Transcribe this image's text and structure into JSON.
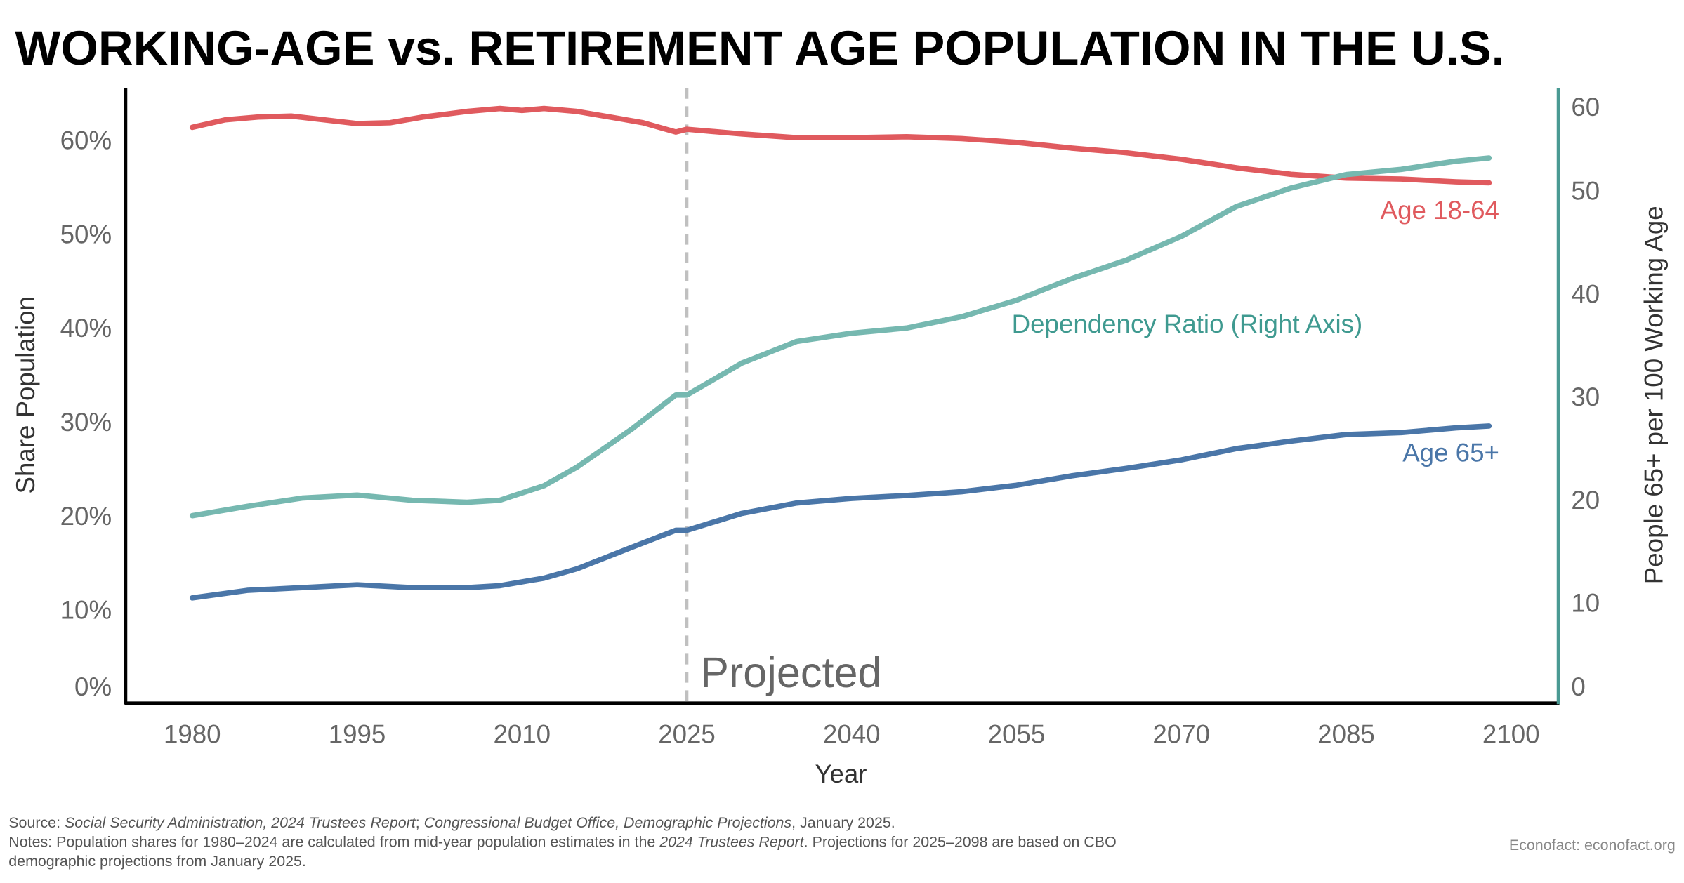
{
  "title": "WORKING-AGE vs. RETIREMENT AGE POPULATION IN THE U.S.",
  "chart_data": {
    "type": "line",
    "title": "WORKING-AGE vs. RETIREMENT AGE POPULATION IN THE U.S.",
    "xlabel": "Year",
    "ylabel": "Share Population",
    "ylabel_right": "People 65+ per 100 Working Age",
    "xlim": [
      1974,
      2104
    ],
    "ylim": [
      -1.7,
      65
    ],
    "ylim_right": [
      -0.2,
      60
    ],
    "x_ticks": [
      "1980",
      "1995",
      "2010",
      "2025",
      "2040",
      "2055",
      "2070",
      "2085",
      "2100"
    ],
    "y_ticks": [
      "0%",
      "10%",
      "20%",
      "30%",
      "40%",
      "50%",
      "60%"
    ],
    "y_ticks_right": [
      "0",
      "10",
      "20",
      "30",
      "40",
      "50",
      "60"
    ],
    "grid": false,
    "projection_marker": {
      "x": 2025,
      "label": "Projected",
      "style": "dashed",
      "color": "#c0c0c0"
    },
    "series": [
      {
        "name": "Age 18-64",
        "axis": "left",
        "color": "#e05a5e",
        "x": [
          1980,
          1983,
          1986,
          1989,
          1992,
          1995,
          1998,
          2001,
          2005,
          2008,
          2010,
          2012,
          2015,
          2018,
          2021,
          2024,
          2025,
          2030,
          2035,
          2040,
          2045,
          2050,
          2055,
          2060,
          2065,
          2070,
          2075,
          2080,
          2085,
          2090,
          2095,
          2098
        ],
        "values": [
          61.3,
          62.1,
          62.4,
          62.5,
          62.1,
          61.7,
          61.8,
          62.4,
          63.0,
          63.3,
          63.1,
          63.3,
          63.0,
          62.4,
          61.8,
          60.8,
          61.1,
          60.6,
          60.2,
          60.2,
          60.3,
          60.1,
          59.7,
          59.1,
          58.6,
          57.9,
          57.0,
          56.3,
          55.9,
          55.8,
          55.5,
          55.4
        ]
      },
      {
        "name": "Age 65+",
        "axis": "left",
        "color": "#4a76a8",
        "x": [
          1980,
          1985,
          1990,
          1995,
          2000,
          2005,
          2008,
          2012,
          2015,
          2020,
          2024,
          2025,
          2030,
          2035,
          2040,
          2045,
          2050,
          2055,
          2060,
          2065,
          2070,
          2075,
          2080,
          2085,
          2090,
          2095,
          2098
        ],
        "values": [
          11.2,
          12.0,
          12.3,
          12.6,
          12.3,
          12.3,
          12.5,
          13.3,
          14.3,
          16.6,
          18.4,
          18.4,
          20.2,
          21.3,
          21.8,
          22.1,
          22.5,
          23.2,
          24.2,
          25.0,
          25.9,
          27.1,
          27.9,
          28.6,
          28.8,
          29.3,
          29.5
        ]
      },
      {
        "name": "Dependency Ratio (Right Axis)",
        "axis": "right",
        "color": "#76b8b0",
        "x": [
          1980,
          1985,
          1990,
          1995,
          2000,
          2005,
          2008,
          2012,
          2015,
          2020,
          2024,
          2025,
          2030,
          2035,
          2040,
          2045,
          2050,
          2055,
          2060,
          2065,
          2070,
          2075,
          2080,
          2085,
          2090,
          2095,
          2098
        ],
        "values": [
          18.4,
          19.3,
          20.1,
          20.4,
          19.9,
          19.7,
          19.9,
          21.3,
          23.1,
          26.8,
          30.1,
          30.1,
          33.2,
          35.3,
          36.1,
          36.6,
          37.7,
          39.3,
          41.4,
          43.2,
          45.5,
          48.4,
          50.2,
          51.5,
          52.0,
          52.8,
          53.1
        ]
      }
    ]
  },
  "colors": {
    "right_axis": "#4a9a93",
    "age_18_64_label": "#e05a5e",
    "age_65_label": "#4a76a8",
    "dependency_label": "#3f9a90"
  },
  "footer": {
    "source": [
      {
        "t": "Source: ",
        "i": false
      },
      {
        "t": "Social Security Administration, 2024 Trustees Report",
        "i": true
      },
      {
        "t": "; ",
        "i": false
      },
      {
        "t": "Congressional Budget Office, Demographic Projections",
        "i": true
      },
      {
        "t": ", January 2025.",
        "i": false
      }
    ],
    "notes_line1": [
      {
        "t": "Notes: Population shares for 1980–2024 are calculated from mid-year population estimates in the ",
        "i": false
      },
      {
        "t": "2024 Trustees Report",
        "i": true
      },
      {
        "t": ". Projections for 2025–2098 are based on CBO",
        "i": false
      }
    ],
    "notes_line2": "demographic projections from January 2025.",
    "credit": "Econofact: econofact.org"
  }
}
